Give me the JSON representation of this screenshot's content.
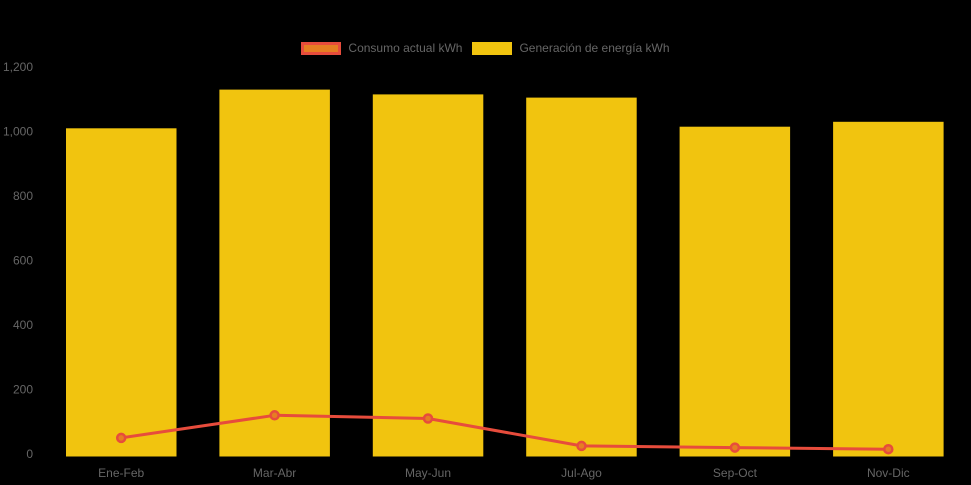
{
  "chart_data": {
    "type": "bar",
    "title": "",
    "categories": [
      "Ene-Feb",
      "Mar-Abr",
      "May-Jun",
      "Jul-Ago",
      "Sep-Oct",
      "Nov-Dic"
    ],
    "series": [
      {
        "name": "Consumo actual kWh",
        "type": "line",
        "values": [
          50,
          120,
          110,
          25,
          20,
          15
        ],
        "line_color": "#E74C3C",
        "fill_color": "#E67E22"
      },
      {
        "name": "Generación de energía kWh",
        "type": "bar",
        "values": [
          1010,
          1130,
          1115,
          1105,
          1015,
          1030
        ],
        "fill_color": "#F1C40F"
      }
    ],
    "xlabel": "",
    "ylabel": "",
    "ylim": [
      0,
      1200
    ],
    "yticks": [
      "0",
      "200",
      "400",
      "600",
      "800",
      "1,000",
      "1,200"
    ],
    "legend_position": "top",
    "grid": false,
    "background_color": "#000000",
    "text_color": "#666666"
  }
}
